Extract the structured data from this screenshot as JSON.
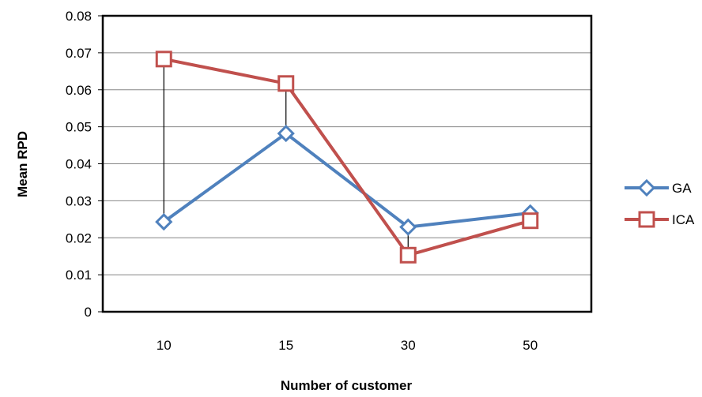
{
  "chart_data": {
    "type": "line",
    "title": "",
    "xlabel": "Number of customer",
    "ylabel": "Mean  RPD",
    "categories": [
      "10",
      "15",
      "30",
      "50"
    ],
    "ylim": [
      0,
      0.08
    ],
    "yticks": [
      "0",
      "0.01",
      "0.02",
      "0.03",
      "0.04",
      "0.05",
      "0.06",
      "0.07",
      "0.08"
    ],
    "grid": true,
    "legend_position": "right",
    "series": [
      {
        "name": "GA",
        "values": [
          0.0243,
          0.0482,
          0.0229,
          0.0267
        ],
        "color": "#4f81bd",
        "marker": "diamond"
      },
      {
        "name": "ICA",
        "values": [
          0.0683,
          0.0617,
          0.0153,
          0.0246
        ],
        "color": "#c0504d",
        "marker": "square"
      }
    ],
    "connectors": "vertical black lines between GA and ICA at each category"
  }
}
